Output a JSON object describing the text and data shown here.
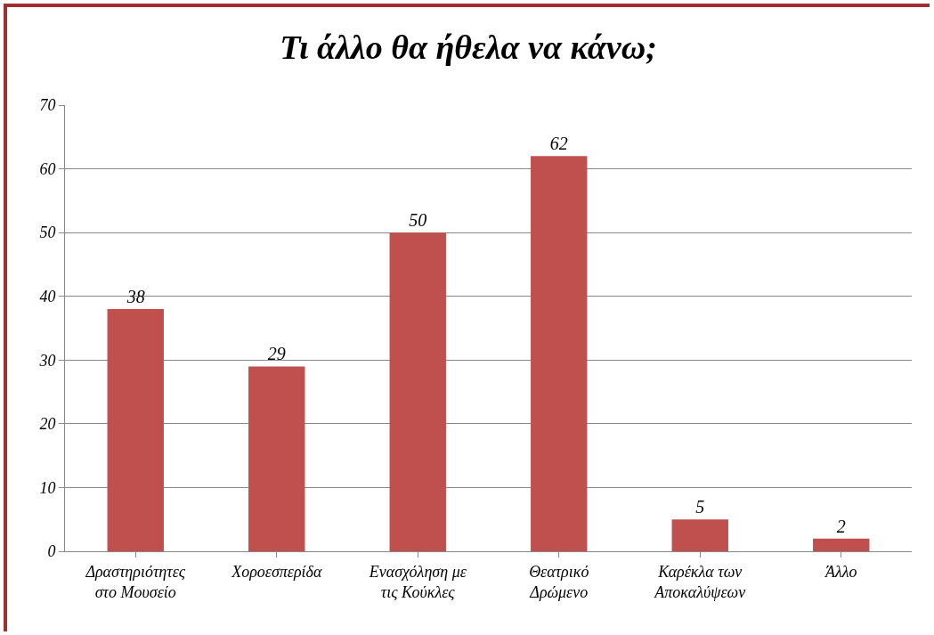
{
  "chart_data": {
    "type": "bar",
    "title": "Τι άλλο θα ήθελα να κάνω;",
    "categories": [
      "Δραστηριότητες στο Μουσείο",
      "Χοροεσπερίδα",
      "Ενασχόληση με τις Κούκλες",
      "Θεατρικό Δρώμενο",
      "Καρέκλα των Αποκαλύψεων",
      "Άλλο"
    ],
    "values": [
      38,
      29,
      50,
      62,
      5,
      2
    ],
    "color": "#c0504d",
    "ylim": [
      0,
      70
    ],
    "yticks": [
      0,
      10,
      20,
      30,
      40,
      50,
      60,
      70
    ],
    "grid": "y",
    "data_labels": true
  }
}
